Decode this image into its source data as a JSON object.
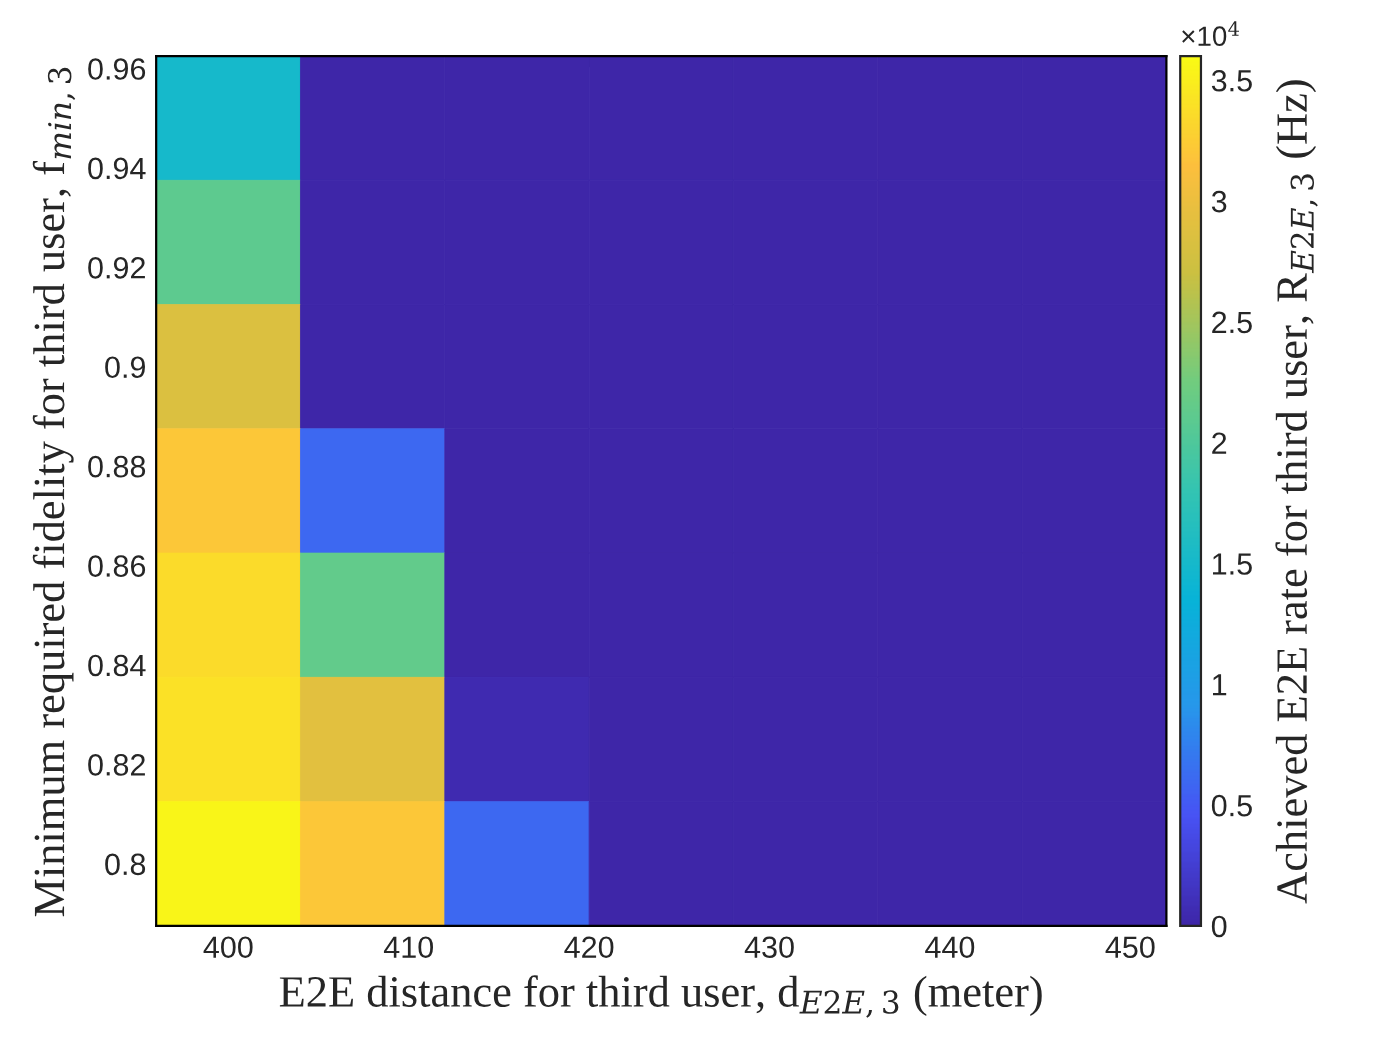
{
  "chart_data": {
    "type": "heatmap",
    "xlabel": "E2E distance for third user, d$_{E2E,3}$ (meter)",
    "ylabel": "Minimum required fidelity for third user, f$_{min,3}$",
    "clabel": "Achieved E2E rate for third user, R$_{E2E,3}$ (Hz)",
    "annotations": [
      "×10$^{4}$"
    ],
    "x": [
      400,
      408,
      416,
      424,
      432,
      440,
      448
    ],
    "y": [
      0.95,
      0.925,
      0.9,
      0.875,
      0.85,
      0.825,
      0.8
    ],
    "cells": [
      [
        1.5,
        0,
        0,
        0,
        0,
        0,
        0
      ],
      [
        2.1,
        0,
        0,
        0,
        0,
        0,
        0
      ],
      [
        2.85,
        0,
        0,
        0,
        0,
        0,
        0
      ],
      [
        3.2,
        0.6,
        0,
        0,
        0,
        0,
        0
      ],
      [
        3.35,
        2.15,
        0,
        0,
        0,
        0,
        0
      ],
      [
        3.4,
        2.9,
        0.05,
        0,
        0,
        0,
        0
      ],
      [
        3.55,
        3.2,
        0.6,
        0,
        0,
        0,
        0
      ]
    ],
    "xlim": [
      396,
      452
    ],
    "ylim": [
      0.7875,
      0.9625
    ],
    "xticks": [
      400,
      410,
      420,
      430,
      440,
      450
    ],
    "yticks": [
      0.8,
      0.82,
      0.84,
      0.86,
      0.88,
      0.9,
      0.92,
      0.94,
      0.96
    ],
    "clim": [
      0,
      3.6
    ],
    "cticks": [
      0,
      0.5,
      1,
      1.5,
      2,
      2.5,
      3,
      3.5
    ]
  }
}
